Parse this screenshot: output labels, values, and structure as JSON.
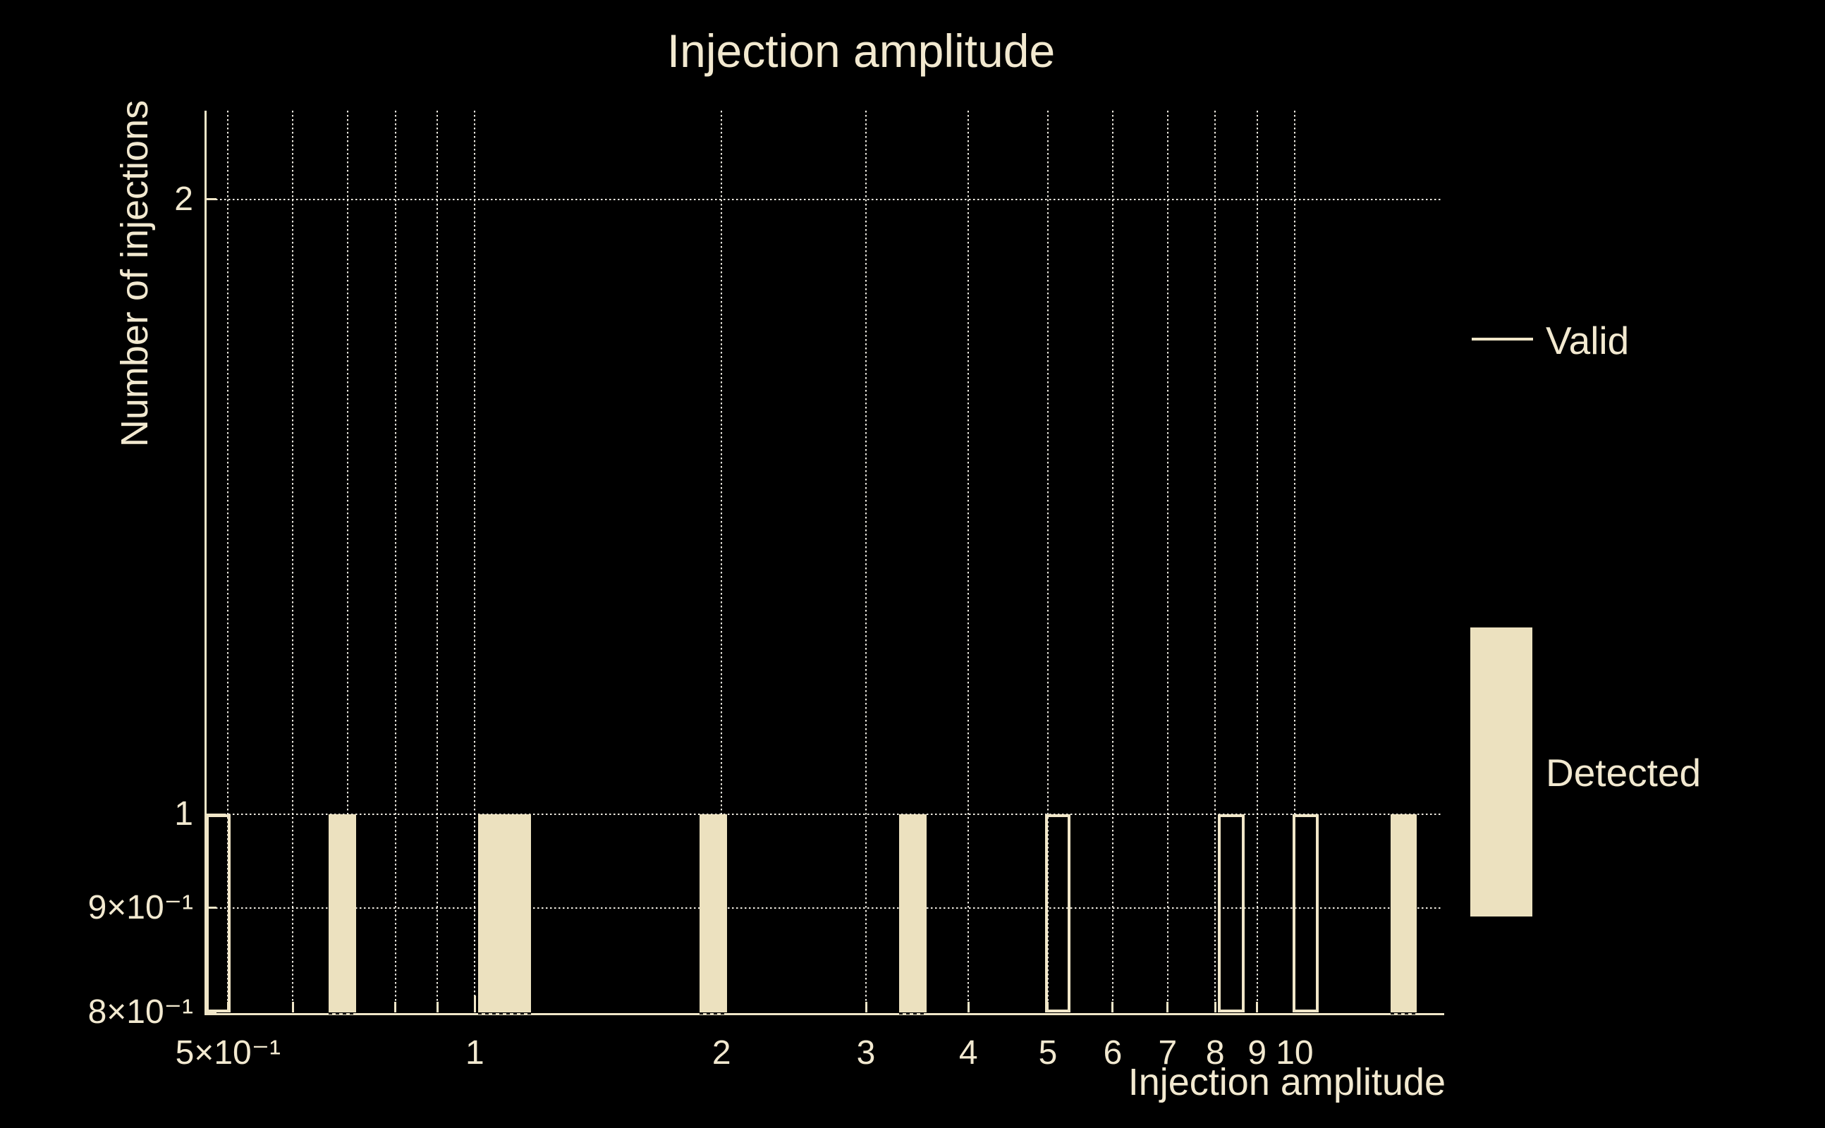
{
  "colors": {
    "background": "#000000",
    "cream_stroke": "#f0e6c8",
    "cream_fill": "#ece1bf",
    "text": "#f2e9d0",
    "gridline": "#fcf8ee",
    "base_marks": "#000000"
  },
  "chart_data": {
    "type": "bar",
    "subtype": "histogram-log-log",
    "title": "Injection amplitude",
    "xlabel": "Injection amplitude",
    "ylabel": "Number of injections",
    "x_scale": "log",
    "y_scale": "log",
    "x_domain": [
      0.469,
      15.16
    ],
    "y_domain": [
      0.8,
      2.21
    ],
    "grid": "dotted, both axes, behind filled bars",
    "legend_position": "right of axes",
    "x_ticks": [
      {
        "v": 0.5,
        "label": "5×10⁻¹",
        "major": false
      },
      {
        "v": 0.6,
        "label": "",
        "major": false
      },
      {
        "v": 0.7,
        "label": "",
        "major": false
      },
      {
        "v": 0.8,
        "label": "",
        "major": false
      },
      {
        "v": 0.9,
        "label": "",
        "major": false
      },
      {
        "v": 1,
        "label": "1",
        "major": true
      },
      {
        "v": 2,
        "label": "2",
        "major": false
      },
      {
        "v": 3,
        "label": "3",
        "major": false
      },
      {
        "v": 4,
        "label": "4",
        "major": false
      },
      {
        "v": 5,
        "label": "5",
        "major": false
      },
      {
        "v": 6,
        "label": "6",
        "major": false
      },
      {
        "v": 7,
        "label": "7",
        "major": false
      },
      {
        "v": 8,
        "label": "8",
        "major": false
      },
      {
        "v": 9,
        "label": "9",
        "major": false
      },
      {
        "v": 10,
        "label": "10",
        "major": true
      }
    ],
    "y_ticks": [
      {
        "v": 0.8,
        "label": "8×10⁻¹",
        "major": false,
        "grid": false
      },
      {
        "v": 0.9,
        "label": "9×10⁻¹",
        "major": false,
        "grid": true
      },
      {
        "v": 1,
        "label": "1",
        "major": true,
        "grid": true
      },
      {
        "v": 2,
        "label": "2",
        "major": false,
        "grid": true
      }
    ],
    "series": [
      {
        "name": "Valid",
        "style": "outlined",
        "bins": [
          [
            0.47,
            0.504
          ],
          [
            4.96,
            5.33
          ],
          [
            8.06,
            8.69
          ],
          [
            9.94,
            10.7
          ]
        ],
        "counts": [
          1,
          1,
          1,
          1
        ]
      },
      {
        "name": "Detected",
        "style": "filled",
        "bins": [
          [
            0.663,
            0.717
          ],
          [
            1.01,
            1.17
          ],
          [
            1.88,
            2.03
          ],
          [
            3.29,
            3.56
          ],
          [
            13.1,
            14.1
          ]
        ],
        "counts": [
          1,
          1,
          1,
          1,
          1
        ]
      }
    ],
    "legend": [
      {
        "label": "Valid",
        "marker": "line"
      },
      {
        "label": "Detected",
        "marker": "bar"
      }
    ]
  }
}
